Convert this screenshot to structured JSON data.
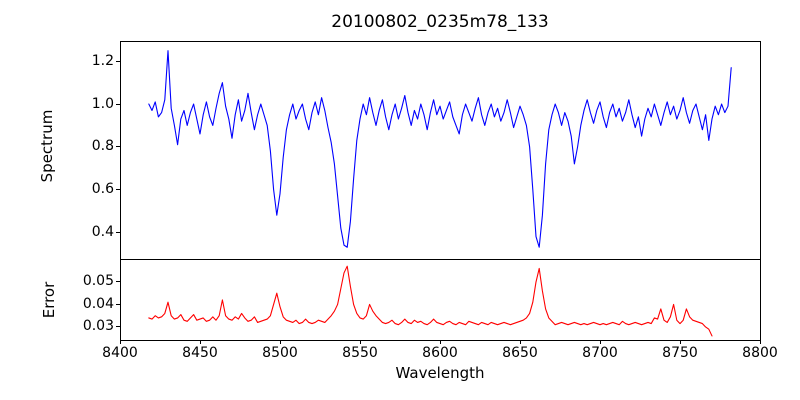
{
  "figure": {
    "title": "20100802_0235m78_133",
    "xlabel": "Wavelength",
    "background_color": "#ffffff",
    "axis_color": "#000000",
    "xlim": [
      8400,
      8800
    ],
    "x_ticks": [
      "8400",
      "8450",
      "8500",
      "8550",
      "8600",
      "8650",
      "8700",
      "8750",
      "8800"
    ]
  },
  "chart_data": [
    {
      "type": "line",
      "series_name": "spectrum",
      "ylabel": "Spectrum",
      "line_color": "#0000ff",
      "xlim": [
        8400,
        8800
      ],
      "ylim": [
        0.275,
        1.295
      ],
      "y_ticks": [
        "0.4",
        "0.6",
        "0.8",
        "1.0",
        "1.2"
      ],
      "x_start": 8418,
      "x_step": 2,
      "values": [
        1.0,
        0.97,
        1.01,
        0.94,
        0.96,
        1.02,
        1.25,
        0.98,
        0.9,
        0.81,
        0.93,
        0.97,
        0.9,
        0.96,
        1.0,
        0.93,
        0.86,
        0.95,
        1.01,
        0.94,
        0.9,
        0.98,
        1.05,
        1.1,
        0.99,
        0.93,
        0.84,
        0.95,
        1.02,
        0.92,
        0.97,
        1.05,
        0.96,
        0.88,
        0.95,
        1.0,
        0.95,
        0.9,
        0.78,
        0.6,
        0.48,
        0.58,
        0.75,
        0.88,
        0.95,
        1.0,
        0.93,
        0.97,
        1.0,
        0.93,
        0.88,
        0.96,
        1.01,
        0.95,
        1.03,
        0.97,
        0.89,
        0.82,
        0.72,
        0.57,
        0.42,
        0.34,
        0.33,
        0.45,
        0.65,
        0.83,
        0.93,
        1.0,
        0.95,
        1.03,
        0.96,
        0.9,
        0.97,
        1.02,
        0.94,
        0.88,
        0.95,
        1.0,
        0.93,
        0.98,
        1.04,
        0.96,
        0.9,
        0.97,
        0.93,
        1.0,
        0.95,
        0.88,
        0.96,
        1.02,
        0.95,
        0.99,
        0.93,
        0.97,
        1.01,
        0.94,
        0.9,
        0.86,
        0.95,
        1.0,
        0.96,
        0.92,
        0.98,
        1.03,
        0.95,
        0.9,
        0.96,
        1.0,
        0.94,
        0.98,
        0.92,
        0.96,
        1.02,
        0.96,
        0.89,
        0.94,
        0.99,
        0.95,
        0.9,
        0.8,
        0.6,
        0.38,
        0.33,
        0.48,
        0.72,
        0.88,
        0.95,
        1.0,
        0.96,
        0.9,
        0.96,
        0.92,
        0.85,
        0.72,
        0.8,
        0.9,
        0.97,
        1.02,
        0.96,
        0.91,
        0.97,
        1.01,
        0.94,
        0.89,
        0.96,
        1.0,
        0.94,
        0.98,
        0.92,
        0.96,
        1.02,
        0.95,
        0.89,
        0.94,
        0.85,
        0.93,
        0.98,
        0.94,
        1.0,
        0.95,
        0.9,
        0.96,
        1.01,
        0.95,
        0.99,
        0.93,
        0.97,
        1.03,
        0.96,
        0.91,
        0.97,
        1.0,
        0.94,
        0.88,
        0.95,
        0.83,
        0.93,
        0.99,
        0.95,
        1.0,
        0.96,
        0.99,
        1.17
      ]
    },
    {
      "type": "line",
      "series_name": "error",
      "ylabel": "Error",
      "line_color": "#ff0000",
      "xlim": [
        8400,
        8800
      ],
      "ylim": [
        0.0242,
        0.0602
      ],
      "y_ticks": [
        "0.03",
        "0.04",
        "0.05"
      ],
      "x_start": 8418,
      "x_step": 2,
      "values": [
        0.034,
        0.0335,
        0.035,
        0.034,
        0.0345,
        0.036,
        0.041,
        0.035,
        0.0335,
        0.034,
        0.0355,
        0.033,
        0.0325,
        0.034,
        0.0355,
        0.033,
        0.0335,
        0.034,
        0.0325,
        0.033,
        0.0345,
        0.033,
        0.035,
        0.042,
        0.035,
        0.0335,
        0.033,
        0.0345,
        0.0335,
        0.036,
        0.034,
        0.0325,
        0.033,
        0.0345,
        0.032,
        0.0325,
        0.033,
        0.0335,
        0.035,
        0.04,
        0.045,
        0.039,
        0.0345,
        0.033,
        0.0325,
        0.032,
        0.033,
        0.0315,
        0.032,
        0.0335,
        0.032,
        0.0315,
        0.032,
        0.033,
        0.0325,
        0.032,
        0.0335,
        0.035,
        0.037,
        0.04,
        0.047,
        0.054,
        0.057,
        0.048,
        0.04,
        0.036,
        0.034,
        0.0335,
        0.035,
        0.04,
        0.037,
        0.035,
        0.0335,
        0.032,
        0.0315,
        0.032,
        0.033,
        0.0315,
        0.031,
        0.032,
        0.0335,
        0.032,
        0.0315,
        0.033,
        0.032,
        0.0325,
        0.0315,
        0.031,
        0.032,
        0.0335,
        0.032,
        0.0315,
        0.031,
        0.032,
        0.0325,
        0.0315,
        0.031,
        0.032,
        0.0315,
        0.031,
        0.0325,
        0.032,
        0.0315,
        0.031,
        0.032,
        0.0315,
        0.031,
        0.032,
        0.0315,
        0.031,
        0.0315,
        0.032,
        0.0315,
        0.031,
        0.0315,
        0.032,
        0.0325,
        0.033,
        0.034,
        0.036,
        0.041,
        0.05,
        0.056,
        0.046,
        0.038,
        0.034,
        0.0325,
        0.031,
        0.0315,
        0.032,
        0.0315,
        0.031,
        0.0315,
        0.032,
        0.0315,
        0.031,
        0.0315,
        0.031,
        0.0315,
        0.032,
        0.0315,
        0.031,
        0.0315,
        0.031,
        0.0315,
        0.032,
        0.0315,
        0.031,
        0.0325,
        0.0315,
        0.031,
        0.0315,
        0.032,
        0.0315,
        0.031,
        0.0315,
        0.032,
        0.0315,
        0.034,
        0.0335,
        0.038,
        0.033,
        0.032,
        0.0345,
        0.04,
        0.033,
        0.0315,
        0.033,
        0.038,
        0.0345,
        0.033,
        0.0325,
        0.032,
        0.0315,
        0.03,
        0.029,
        0.026
      ]
    }
  ]
}
